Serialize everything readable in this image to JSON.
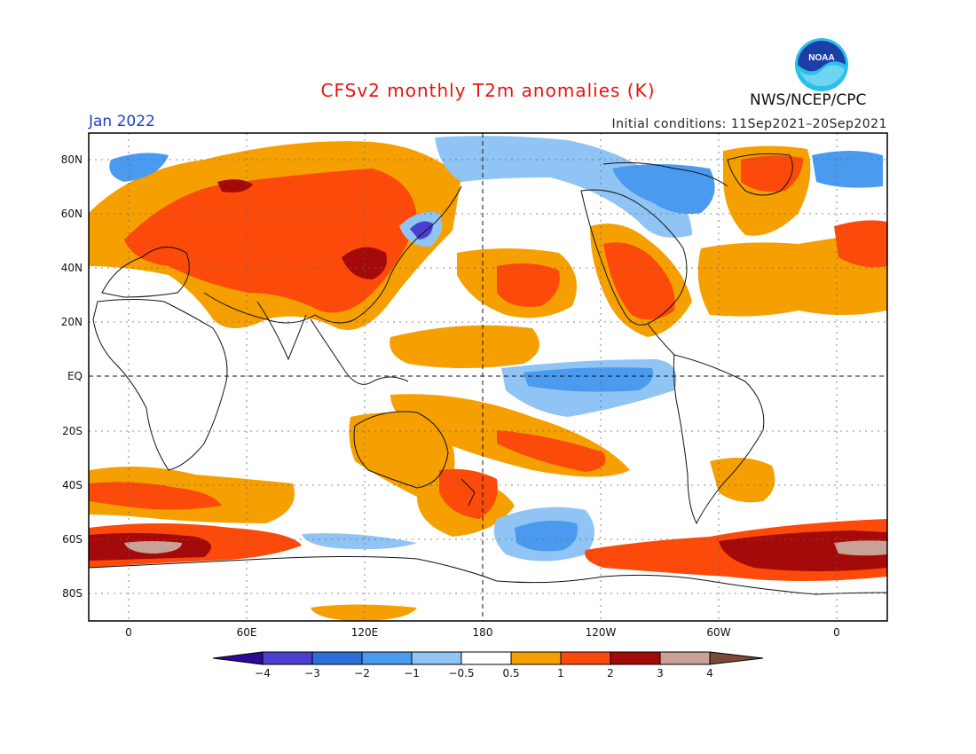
{
  "header": {
    "title": "CFSv2 monthly T2m anomalies (K)",
    "agency": "NWS/NCEP/CPC",
    "month": "Jan 2022",
    "initial_conditions": "Initial conditions: 11Sep2021–20Sep2021",
    "logo_text": "NOAA"
  },
  "axes": {
    "lat_labels": [
      "80N",
      "60N",
      "40N",
      "20N",
      "EQ",
      "20S",
      "40S",
      "60S",
      "80S"
    ],
    "lon_labels": [
      "0",
      "60E",
      "120E",
      "180",
      "120W",
      "60W",
      "0"
    ]
  },
  "colorbar": {
    "labels": [
      "−4",
      "−3",
      "−2",
      "−1",
      "−0.5",
      "0.5",
      "1",
      "2",
      "3",
      "4"
    ],
    "colors": [
      "#2a0a96",
      "#4a3fd0",
      "#2d6fd9",
      "#4a9af0",
      "#8fc4f4",
      "#ffffff",
      "#f5a000",
      "#fb4a0a",
      "#a40a0a",
      "#c9a196",
      "#7a4a36"
    ]
  },
  "palette": {
    "pos05": "#f5a000",
    "pos1": "#fb4a0a",
    "pos2": "#a40a0a",
    "pos3": "#c9a196",
    "neg05": "#8fc4f4",
    "neg1": "#4a9af0",
    "neg2": "#2d6fd9",
    "neg3": "#4a3fd0"
  }
}
